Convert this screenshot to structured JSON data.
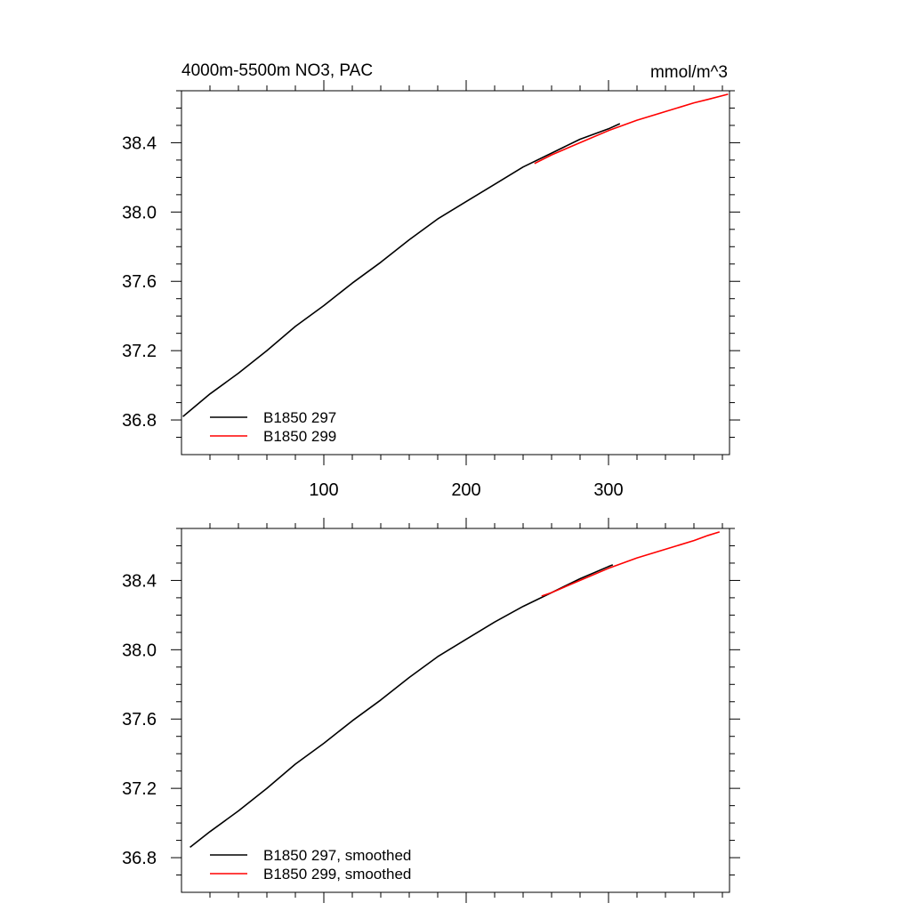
{
  "chart_data": [
    {
      "type": "line",
      "title_left": "4000m-5500m NO3, PAC",
      "title_right": "mmol/m^3",
      "xlim": [
        0,
        385
      ],
      "ylim": [
        36.6,
        38.7
      ],
      "x_ticks": [
        100,
        200,
        300
      ],
      "x_tick_labels": [
        "100",
        "200",
        "300"
      ],
      "y_ticks": [
        36.8,
        37.2,
        37.6,
        38.0,
        38.4
      ],
      "y_tick_labels": [
        "36.8",
        "37.2",
        "37.6",
        "38.0",
        "38.4"
      ],
      "legend_position": "bottom-left",
      "series": [
        {
          "name": "B1850 297",
          "color": "#000000",
          "x": [
            1,
            20,
            40,
            60,
            80,
            100,
            120,
            140,
            160,
            180,
            200,
            220,
            240,
            260,
            280,
            300,
            308
          ],
          "y": [
            36.82,
            36.95,
            37.07,
            37.2,
            37.34,
            37.46,
            37.59,
            37.71,
            37.84,
            37.96,
            38.06,
            38.16,
            38.26,
            38.34,
            38.42,
            38.48,
            38.51
          ]
        },
        {
          "name": "B1850 299",
          "color": "#ff0000",
          "x": [
            248,
            260,
            280,
            300,
            320,
            340,
            360,
            370,
            384
          ],
          "y": [
            38.28,
            38.33,
            38.4,
            38.47,
            38.53,
            38.58,
            38.63,
            38.65,
            38.68
          ]
        }
      ]
    },
    {
      "type": "line",
      "xlim": [
        0,
        385
      ],
      "ylim": [
        36.6,
        38.7
      ],
      "x_ticks": [
        100,
        200,
        300
      ],
      "y_ticks": [
        36.8,
        37.2,
        37.6,
        38.0,
        38.4
      ],
      "y_tick_labels": [
        "36.8",
        "37.2",
        "37.6",
        "38.0",
        "38.4"
      ],
      "legend_position": "bottom-left",
      "series": [
        {
          "name": "B1850 297, smoothed",
          "color": "#000000",
          "x": [
            6,
            20,
            40,
            60,
            80,
            100,
            120,
            140,
            160,
            180,
            200,
            220,
            240,
            260,
            280,
            300,
            303
          ],
          "y": [
            36.86,
            36.95,
            37.07,
            37.2,
            37.34,
            37.46,
            37.59,
            37.71,
            37.84,
            37.96,
            38.06,
            38.16,
            38.25,
            38.33,
            38.41,
            38.48,
            38.49
          ]
        },
        {
          "name": "B1850 299, smoothed",
          "color": "#ff0000",
          "x": [
            253,
            260,
            280,
            300,
            320,
            340,
            360,
            370,
            378
          ],
          "y": [
            38.31,
            38.33,
            38.4,
            38.47,
            38.53,
            38.58,
            38.63,
            38.66,
            38.68
          ]
        }
      ]
    }
  ]
}
